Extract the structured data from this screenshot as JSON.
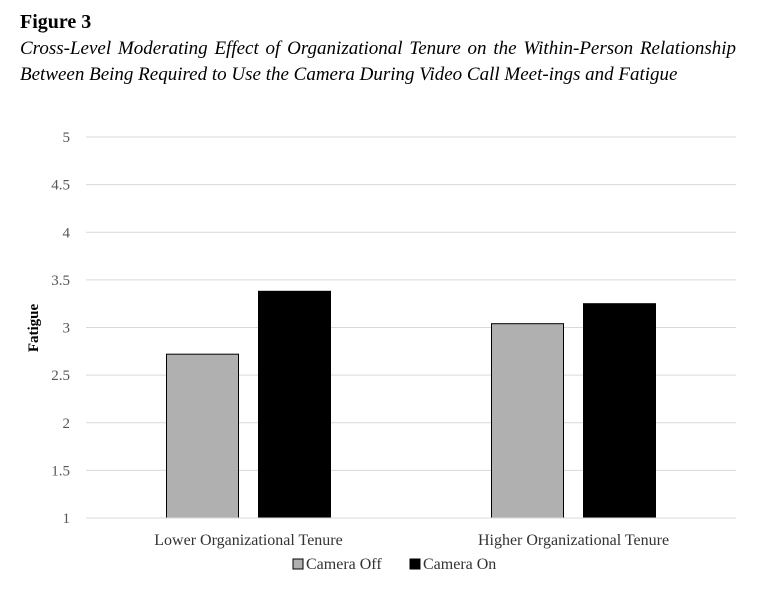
{
  "figure": {
    "label": "Figure 3",
    "caption": "Cross-Level Moderating Effect of Organizational Tenure on the Within-Person Relationship Between Being Required to Use the Camera During Video Call Meet-ings and Fatigue"
  },
  "chart_data": {
    "type": "bar",
    "ylabel": "Fatigue",
    "xlabel": "",
    "ylim": [
      1,
      5
    ],
    "yticks": [
      "1",
      "1.5",
      "2",
      "2.5",
      "3",
      "3.5",
      "4",
      "4.5",
      "5"
    ],
    "grid": true,
    "legend_position": "bottom",
    "categories": [
      "Lower Organizational Tenure",
      "Higher Organizational Tenure"
    ],
    "series": [
      {
        "name": "Camera Off",
        "color": "#b0b0b0",
        "values": [
          2.72,
          3.04
        ]
      },
      {
        "name": "Camera On",
        "color": "#000000",
        "values": [
          3.38,
          3.25
        ]
      }
    ]
  }
}
